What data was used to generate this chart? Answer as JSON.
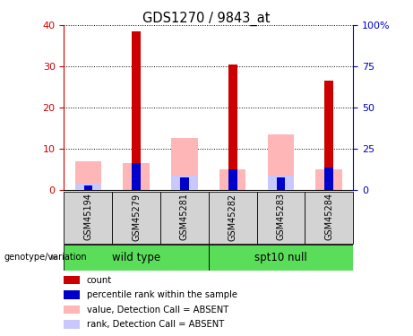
{
  "title": "GDS1270 / 9843_at",
  "samples": [
    "GSM45194",
    "GSM45279",
    "GSM45281",
    "GSM45282",
    "GSM45283",
    "GSM45284"
  ],
  "red_bars": [
    0,
    38.5,
    0,
    30.5,
    0,
    26.5
  ],
  "blue_bars": [
    1.0,
    6.5,
    3.0,
    5.0,
    3.0,
    5.5
  ],
  "pink_bars": [
    7.0,
    6.5,
    12.5,
    5.0,
    13.5,
    5.0
  ],
  "lavender_bars": [
    1.5,
    0,
    3.5,
    0,
    3.5,
    0
  ],
  "ylim_left": [
    0,
    40
  ],
  "ylim_right": [
    0,
    100
  ],
  "yticks_left": [
    0,
    10,
    20,
    30,
    40
  ],
  "ytick_labels_right": [
    "0",
    "25",
    "50",
    "75",
    "100%"
  ],
  "left_axis_color": "#cc0000",
  "right_axis_color": "#0000cc",
  "legend_items": [
    {
      "label": "count",
      "color": "#cc0000"
    },
    {
      "label": "percentile rank within the sample",
      "color": "#0000cc"
    },
    {
      "label": "value, Detection Call = ABSENT",
      "color": "#ffb6b6"
    },
    {
      "label": "rank, Detection Call = ABSENT",
      "color": "#c8c8ff"
    }
  ],
  "group_label_color": "#5ade5a",
  "xlabel_bg_color": "#d3d3d3"
}
